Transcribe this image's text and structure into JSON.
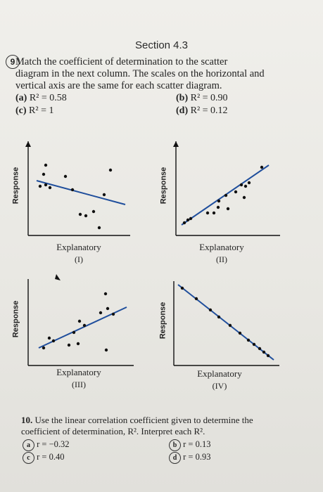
{
  "section_title": "Section 4.3",
  "q9": {
    "number": "9",
    "text_line1": "Match the coefficient of determination to the scatter",
    "text_line2": "diagram in the next column. The scales on the horizontal and",
    "text_line3": "vertical axis are the same for each scatter diagram.",
    "options": [
      {
        "label": "(a)",
        "value": "R² = 0.58"
      },
      {
        "label": "(b)",
        "value": "R² = 0.90"
      },
      {
        "label": "(c)",
        "value": "R² = 1"
      },
      {
        "label": "(d)",
        "value": "R² = 0.12"
      }
    ]
  },
  "plots": [
    {
      "ylabel": "Response",
      "xlabel": "Explanatory",
      "roman": "(I)"
    },
    {
      "ylabel": "Response",
      "xlabel": "Explanatory",
      "roman": "(II)"
    },
    {
      "ylabel": "Response",
      "xlabel": "Explanatory",
      "roman": "(III)"
    },
    {
      "ylabel": "Response",
      "xlabel": "Explanatory",
      "roman": "(IV)"
    }
  ],
  "q10": {
    "number": "10.",
    "text_line1": "Use the linear correlation coefficient given to determine the",
    "text_line2": "coefficient of determination, R². Interpret each R².",
    "items": [
      {
        "label": "a",
        "value": "r = −0.32"
      },
      {
        "label": "b",
        "value": "r = 0.13"
      },
      {
        "label": "c",
        "value": "r = 0.40"
      },
      {
        "label": "d",
        "value": "r = 0.93"
      }
    ]
  }
}
